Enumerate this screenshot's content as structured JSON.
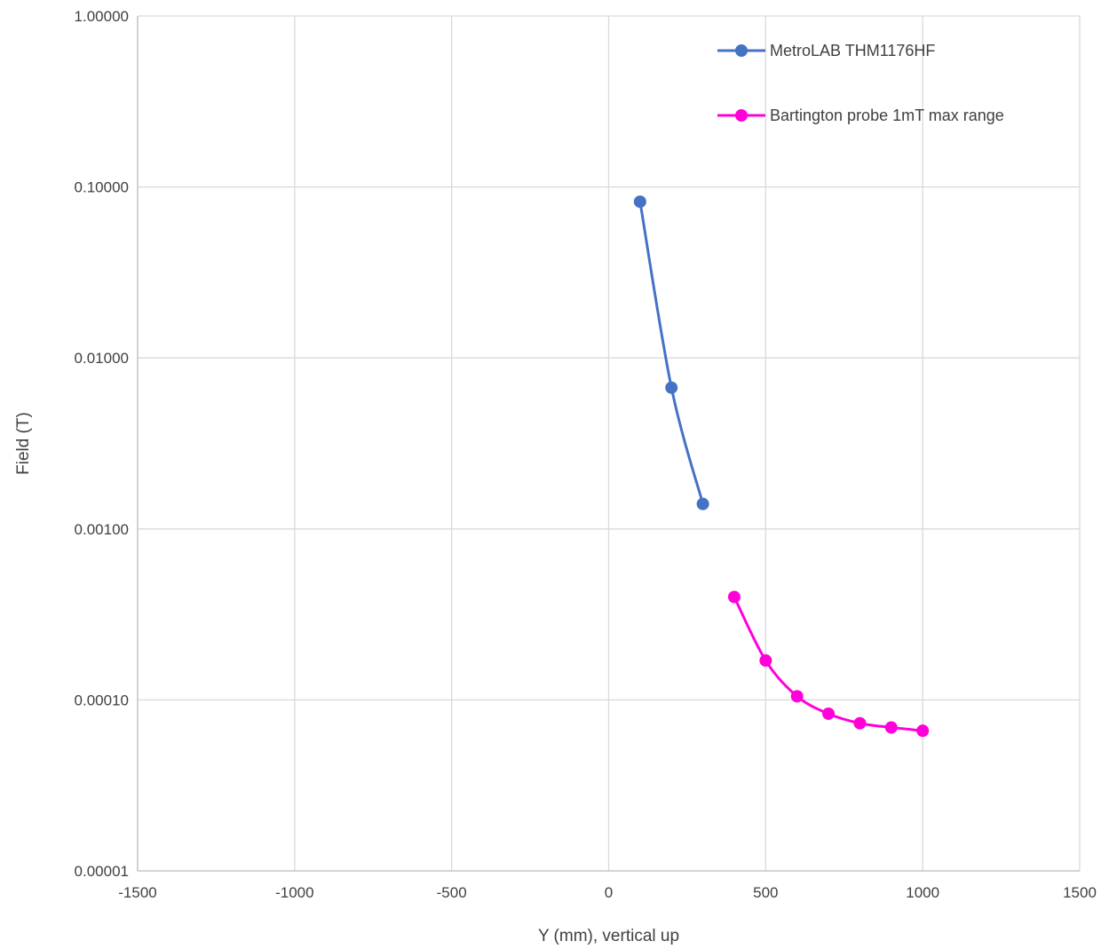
{
  "chart_data": {
    "type": "scatter",
    "x_label": "Y (mm), vertical up",
    "y_label": "Field (T)",
    "x_range": [
      -1500,
      1500
    ],
    "x_ticks": [
      -1500,
      -1000,
      -500,
      0,
      500,
      1000,
      1500
    ],
    "x_tick_labels": [
      "-1500",
      "-1000",
      "-500",
      "0",
      "500",
      "1000",
      "1500"
    ],
    "y_scale": "log",
    "y_range": [
      1e-05,
      1
    ],
    "y_ticks": [
      1e-05,
      0.0001,
      0.001,
      0.01,
      0.1,
      1
    ],
    "y_tick_labels": [
      "0.00001",
      "0.00010",
      "0.00100",
      "0.01000",
      "0.10000",
      "1.00000"
    ],
    "grid": true,
    "legend_position": "top-right",
    "line_style": "smooth lines with markers",
    "series": [
      {
        "name": "MetroLAB THM1176HF",
        "color": "#4472C4",
        "x": [
          100,
          200,
          300
        ],
        "y": [
          0.082,
          0.0067,
          0.0014
        ]
      },
      {
        "name": "Bartington probe 1mT max range",
        "color": "#FF00D9",
        "x": [
          400,
          500,
          600,
          700,
          800,
          900,
          1000
        ],
        "y": [
          0.0004,
          0.00017,
          0.000105,
          8.3e-05,
          7.3e-05,
          6.9e-05,
          6.6e-05
        ]
      }
    ]
  }
}
